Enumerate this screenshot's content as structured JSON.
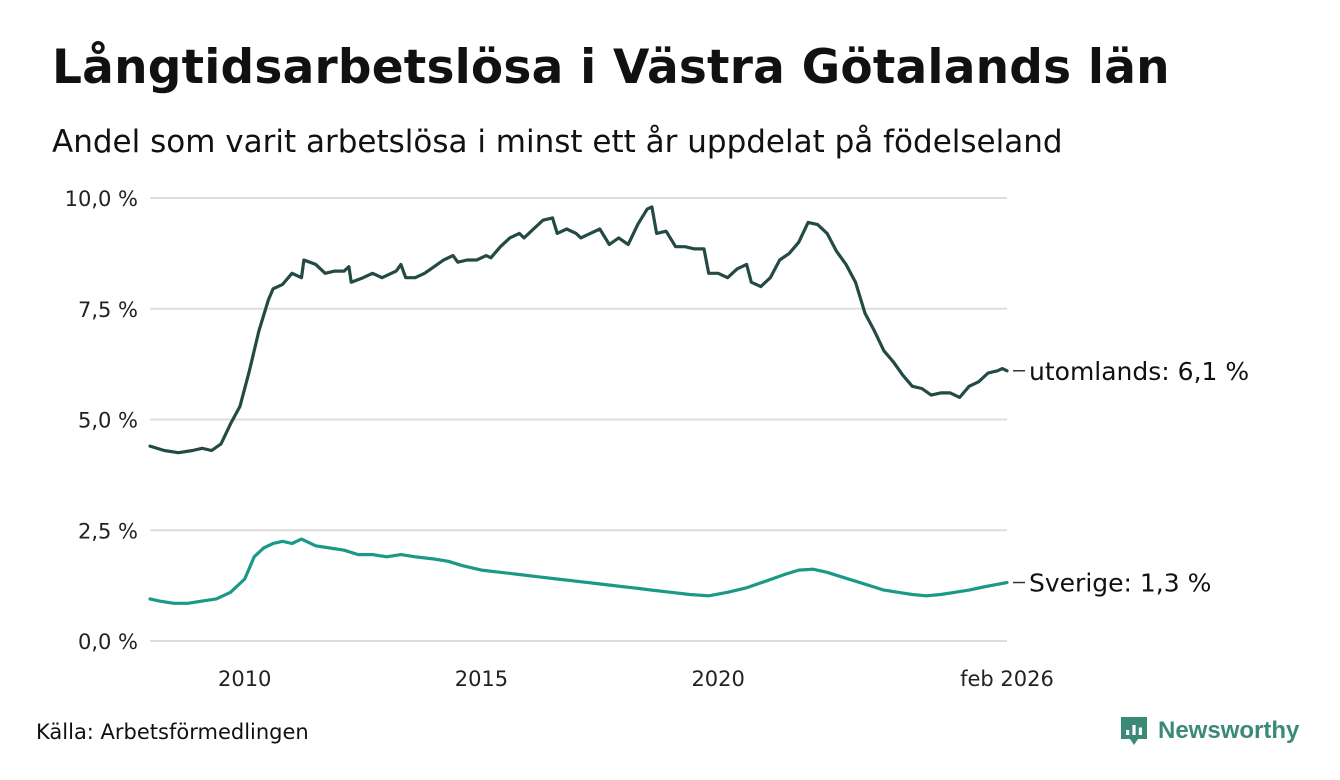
{
  "title": "Långtidsarbetslösa i Västra Götalands län",
  "subtitle": "Andel som varit arbetslösa i minst ett år uppdelat på födelseland",
  "source": "Källa: Arbetsförmedlingen",
  "brand": "Newsworthy",
  "colors": {
    "utomlands": "#234a44",
    "sverige": "#1a9a86",
    "grid": "#dddddd",
    "brand": "#3b8a77"
  },
  "chart_data": {
    "type": "line",
    "title": "Långtidsarbetslösa i Västra Götalands län",
    "xlabel": "",
    "ylabel": "",
    "x_range": [
      2008.0,
      2026.1
    ],
    "ylim": [
      0,
      10
    ],
    "y_ticks": [
      0,
      2.5,
      5,
      7.5,
      10
    ],
    "y_tick_labels": [
      "0,0 %",
      "2,5 %",
      "5,0 %",
      "7,5 %",
      "10,0 %"
    ],
    "x_ticks": [
      2010,
      2015,
      2020,
      2026.1
    ],
    "x_tick_labels": [
      "2010",
      "2015",
      "2020",
      "feb 2026"
    ],
    "grid": true,
    "series": [
      {
        "name": "utomlands",
        "end_label": "utomlands: 6,1 %",
        "points": [
          [
            2008.0,
            4.4
          ],
          [
            2008.3,
            4.3
          ],
          [
            2008.6,
            4.25
          ],
          [
            2008.9,
            4.3
          ],
          [
            2009.1,
            4.35
          ],
          [
            2009.3,
            4.3
          ],
          [
            2009.5,
            4.45
          ],
          [
            2009.7,
            4.9
          ],
          [
            2009.9,
            5.3
          ],
          [
            2010.1,
            6.1
          ],
          [
            2010.3,
            7.0
          ],
          [
            2010.5,
            7.7
          ],
          [
            2010.6,
            7.95
          ],
          [
            2010.8,
            8.05
          ],
          [
            2011.0,
            8.3
          ],
          [
            2011.2,
            8.2
          ],
          [
            2011.25,
            8.6
          ],
          [
            2011.5,
            8.5
          ],
          [
            2011.7,
            8.3
          ],
          [
            2011.9,
            8.35
          ],
          [
            2012.1,
            8.35
          ],
          [
            2012.2,
            8.45
          ],
          [
            2012.25,
            8.1
          ],
          [
            2012.5,
            8.2
          ],
          [
            2012.7,
            8.3
          ],
          [
            2012.9,
            8.2
          ],
          [
            2013.2,
            8.35
          ],
          [
            2013.3,
            8.5
          ],
          [
            2013.4,
            8.2
          ],
          [
            2013.6,
            8.2
          ],
          [
            2013.8,
            8.3
          ],
          [
            2014.0,
            8.45
          ],
          [
            2014.2,
            8.6
          ],
          [
            2014.4,
            8.7
          ],
          [
            2014.5,
            8.55
          ],
          [
            2014.7,
            8.6
          ],
          [
            2014.9,
            8.6
          ],
          [
            2015.1,
            8.7
          ],
          [
            2015.2,
            8.65
          ],
          [
            2015.4,
            8.9
          ],
          [
            2015.6,
            9.1
          ],
          [
            2015.8,
            9.2
          ],
          [
            2015.9,
            9.1
          ],
          [
            2016.1,
            9.3
          ],
          [
            2016.3,
            9.5
          ],
          [
            2016.5,
            9.55
          ],
          [
            2016.6,
            9.2
          ],
          [
            2016.8,
            9.3
          ],
          [
            2017.0,
            9.2
          ],
          [
            2017.1,
            9.1
          ],
          [
            2017.3,
            9.2
          ],
          [
            2017.5,
            9.3
          ],
          [
            2017.7,
            8.95
          ],
          [
            2017.9,
            9.1
          ],
          [
            2018.1,
            8.95
          ],
          [
            2018.3,
            9.4
          ],
          [
            2018.5,
            9.75
          ],
          [
            2018.6,
            9.8
          ],
          [
            2018.7,
            9.2
          ],
          [
            2018.9,
            9.25
          ],
          [
            2019.1,
            8.9
          ],
          [
            2019.3,
            8.9
          ],
          [
            2019.5,
            8.85
          ],
          [
            2019.7,
            8.85
          ],
          [
            2019.8,
            8.3
          ],
          [
            2020.0,
            8.3
          ],
          [
            2020.2,
            8.2
          ],
          [
            2020.4,
            8.4
          ],
          [
            2020.6,
            8.5
          ],
          [
            2020.7,
            8.1
          ],
          [
            2020.9,
            8.0
          ],
          [
            2021.1,
            8.2
          ],
          [
            2021.3,
            8.6
          ],
          [
            2021.5,
            8.75
          ],
          [
            2021.7,
            9.0
          ],
          [
            2021.9,
            9.45
          ],
          [
            2022.1,
            9.4
          ],
          [
            2022.3,
            9.2
          ],
          [
            2022.5,
            8.8
          ],
          [
            2022.7,
            8.5
          ],
          [
            2022.9,
            8.1
          ],
          [
            2023.1,
            7.4
          ],
          [
            2023.3,
            7.0
          ],
          [
            2023.5,
            6.55
          ],
          [
            2023.7,
            6.3
          ],
          [
            2023.9,
            6.0
          ],
          [
            2024.1,
            5.75
          ],
          [
            2024.3,
            5.7
          ],
          [
            2024.5,
            5.55
          ],
          [
            2024.7,
            5.6
          ],
          [
            2024.9,
            5.6
          ],
          [
            2025.1,
            5.5
          ],
          [
            2025.3,
            5.75
          ],
          [
            2025.5,
            5.85
          ],
          [
            2025.7,
            6.05
          ],
          [
            2025.9,
            6.1
          ],
          [
            2026.0,
            6.15
          ],
          [
            2026.1,
            6.1
          ]
        ]
      },
      {
        "name": "Sverige",
        "end_label": "Sverige: 1,3 %",
        "points": [
          [
            2008.0,
            0.95
          ],
          [
            2008.2,
            0.9
          ],
          [
            2008.5,
            0.85
          ],
          [
            2008.8,
            0.85
          ],
          [
            2009.1,
            0.9
          ],
          [
            2009.4,
            0.95
          ],
          [
            2009.7,
            1.1
          ],
          [
            2010.0,
            1.4
          ],
          [
            2010.2,
            1.9
          ],
          [
            2010.4,
            2.1
          ],
          [
            2010.6,
            2.2
          ],
          [
            2010.8,
            2.25
          ],
          [
            2011.0,
            2.2
          ],
          [
            2011.2,
            2.3
          ],
          [
            2011.5,
            2.15
          ],
          [
            2011.8,
            2.1
          ],
          [
            2012.1,
            2.05
          ],
          [
            2012.4,
            1.95
          ],
          [
            2012.7,
            1.95
          ],
          [
            2013.0,
            1.9
          ],
          [
            2013.3,
            1.95
          ],
          [
            2013.6,
            1.9
          ],
          [
            2014.0,
            1.85
          ],
          [
            2014.3,
            1.8
          ],
          [
            2014.6,
            1.7
          ],
          [
            2015.0,
            1.6
          ],
          [
            2015.4,
            1.55
          ],
          [
            2015.8,
            1.5
          ],
          [
            2016.2,
            1.45
          ],
          [
            2016.6,
            1.4
          ],
          [
            2017.0,
            1.35
          ],
          [
            2017.4,
            1.3
          ],
          [
            2017.8,
            1.25
          ],
          [
            2018.2,
            1.2
          ],
          [
            2018.6,
            1.15
          ],
          [
            2019.0,
            1.1
          ],
          [
            2019.4,
            1.05
          ],
          [
            2019.8,
            1.02
          ],
          [
            2020.2,
            1.1
          ],
          [
            2020.6,
            1.2
          ],
          [
            2021.0,
            1.35
          ],
          [
            2021.4,
            1.5
          ],
          [
            2021.7,
            1.6
          ],
          [
            2022.0,
            1.62
          ],
          [
            2022.3,
            1.55
          ],
          [
            2022.6,
            1.45
          ],
          [
            2022.9,
            1.35
          ],
          [
            2023.2,
            1.25
          ],
          [
            2023.5,
            1.15
          ],
          [
            2023.8,
            1.1
          ],
          [
            2024.1,
            1.05
          ],
          [
            2024.4,
            1.02
          ],
          [
            2024.7,
            1.05
          ],
          [
            2025.0,
            1.1
          ],
          [
            2025.3,
            1.15
          ],
          [
            2025.6,
            1.22
          ],
          [
            2025.9,
            1.28
          ],
          [
            2026.1,
            1.32
          ]
        ]
      }
    ]
  }
}
